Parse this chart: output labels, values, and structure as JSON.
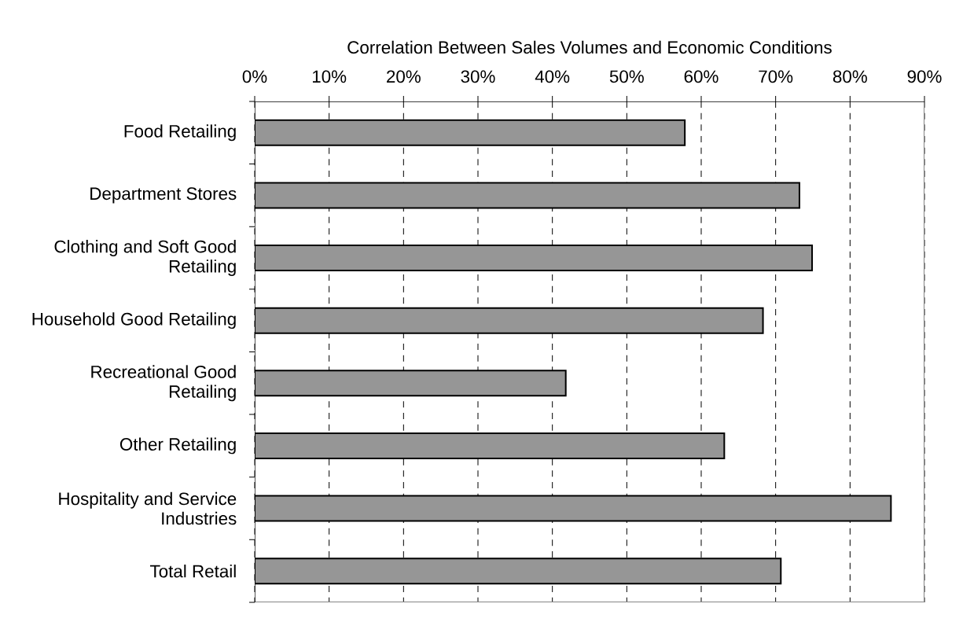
{
  "chart_data": {
    "type": "bar",
    "orientation": "horizontal",
    "xlabel": "Correlation Between Sales Volumes and Economic Conditions",
    "categories": [
      "Food Retailing",
      "Department Stores",
      "Clothing and Soft Good Retailing",
      "Household Good Retailing",
      "Recreational Good Retailing",
      "Other Retailing",
      "Hospitality and Service Industries",
      "Total Retail"
    ],
    "values": [
      57.8,
      73.2,
      74.9,
      68.3,
      41.8,
      63.1,
      85.5,
      70.7
    ],
    "color": "#969696",
    "xlim": [
      0,
      90
    ],
    "xticks": [
      {
        "value": 0,
        "label": "0%"
      },
      {
        "value": 10,
        "label": "10%"
      },
      {
        "value": 20,
        "label": "20%"
      },
      {
        "value": 30,
        "label": "30%"
      },
      {
        "value": 40,
        "label": "40%"
      },
      {
        "value": 50,
        "label": "50%"
      },
      {
        "value": 60,
        "label": "60%"
      },
      {
        "value": 70,
        "label": "70%"
      },
      {
        "value": 80,
        "label": "80%"
      },
      {
        "value": 90,
        "label": "90%"
      }
    ],
    "grid": "x"
  }
}
